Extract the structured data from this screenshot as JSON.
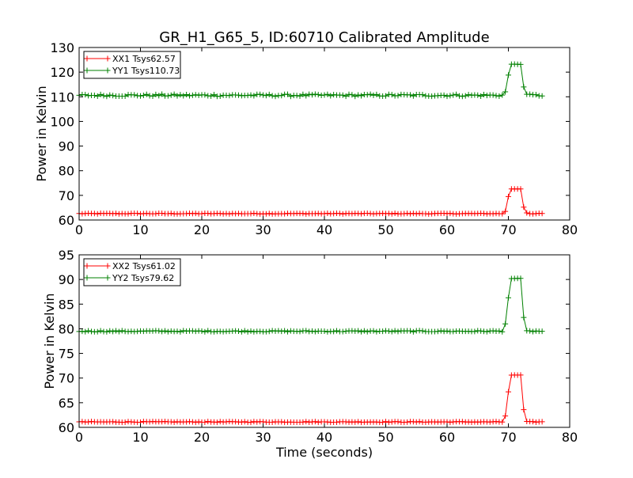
{
  "figure": {
    "title": "GR_H1_G65_5, ID:60710 Calibrated Amplitude",
    "background": "#ffffff"
  },
  "colors": {
    "XX": "#ff0000",
    "YY": "#008000"
  },
  "chart_data": [
    {
      "type": "line",
      "marker": "plus",
      "title": "",
      "xlabel": "",
      "ylabel": "Power in Kelvin",
      "xlim": [
        0,
        80
      ],
      "ylim": [
        60,
        130
      ],
      "xticks": [
        0,
        10,
        20,
        30,
        40,
        50,
        60,
        70,
        80
      ],
      "yticks": [
        60,
        70,
        80,
        90,
        100,
        110,
        120,
        130
      ],
      "grid": false,
      "legend_position": "top-left",
      "x_start": 0,
      "x_step": 0.5,
      "series": [
        {
          "name": "XX1 Tsys62.57",
          "color": "#ff0000",
          "baseline": 62.6,
          "noise": 0.15,
          "peak": 72.6,
          "ramp": [
            63.5,
            69.5
          ],
          "fall": [
            65.2,
            62.9
          ]
        },
        {
          "name": "YY1 Tsys110.73",
          "color": "#008000",
          "baseline": 110.6,
          "noise": 0.45,
          "peak": 123.2,
          "ramp": [
            112.0,
            118.8
          ],
          "fall": [
            114.0,
            111.0
          ]
        }
      ]
    },
    {
      "type": "line",
      "marker": "plus",
      "title": "",
      "xlabel": "Time (seconds)",
      "ylabel": "Power in Kelvin",
      "xlim": [
        0,
        80
      ],
      "ylim": [
        60,
        95
      ],
      "xticks": [
        0,
        10,
        20,
        30,
        40,
        50,
        60,
        70,
        80
      ],
      "yticks": [
        60,
        65,
        70,
        75,
        80,
        85,
        90,
        95
      ],
      "grid": false,
      "legend_position": "top-left",
      "x_start": 0,
      "x_step": 0.5,
      "series": [
        {
          "name": "XX2 Tsys61.02",
          "color": "#ff0000",
          "baseline": 61.1,
          "noise": 0.08,
          "peak": 70.6,
          "ramp": [
            62.3,
            67.2
          ],
          "fall": [
            63.6,
            61.2
          ]
        },
        {
          "name": "YY2 Tsys79.62",
          "color": "#008000",
          "baseline": 79.5,
          "noise": 0.12,
          "peak": 90.2,
          "ramp": [
            81.0,
            86.3
          ],
          "fall": [
            82.3,
            79.6
          ]
        }
      ]
    }
  ]
}
